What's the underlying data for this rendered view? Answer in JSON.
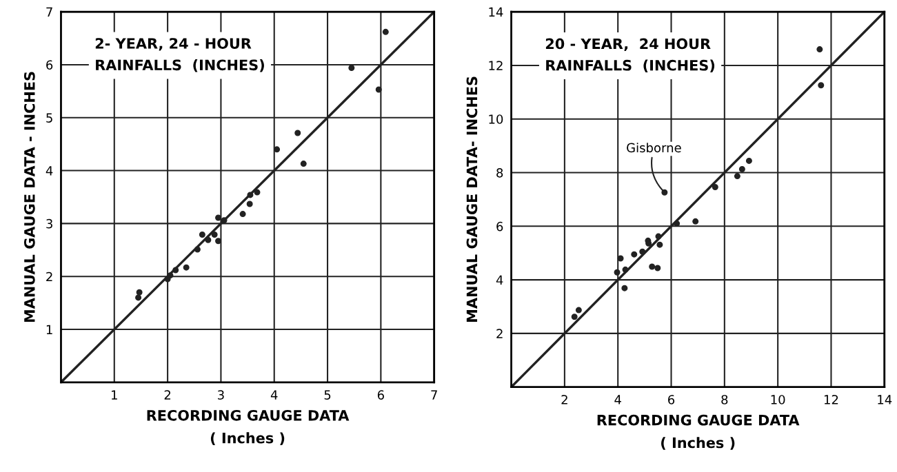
{
  "chart_data": [
    {
      "type": "scatter",
      "title": "2- YEAR, 24 - HOUR\nRAINFALLS  (INCHES)",
      "xlabel": "RECORDING GAUGE DATA\n( Inches )",
      "ylabel": "MANUAL GAUGE DATA - INCHES",
      "xlim": [
        0,
        7
      ],
      "ylim": [
        0,
        7
      ],
      "xticks": [
        1,
        2,
        3,
        4,
        5,
        6,
        7
      ],
      "yticks": [
        1,
        2,
        3,
        4,
        5,
        6,
        7
      ],
      "grid": true,
      "legend": false,
      "series": [
        {
          "marker": "circle",
          "color": "#222222",
          "x": [
            1.47,
            1.45,
            2.0,
            2.05,
            2.15,
            2.35,
            2.56,
            2.65,
            2.76,
            2.88,
            2.95,
            2.95,
            3.06,
            3.41,
            3.54,
            3.55,
            3.68,
            4.05,
            4.44,
            4.55,
            5.45,
            5.96,
            6.09
          ],
          "values": [
            1.7,
            1.6,
            1.95,
            2.02,
            2.12,
            2.17,
            2.51,
            2.79,
            2.69,
            2.79,
            2.67,
            3.11,
            3.06,
            3.18,
            3.37,
            3.54,
            3.59,
            4.4,
            4.71,
            4.13,
            5.94,
            5.53,
            6.62
          ]
        },
        {
          "type": "line",
          "marker": "none",
          "color": "#222222",
          "x": [
            0,
            7
          ],
          "values": [
            0,
            7
          ]
        }
      ]
    },
    {
      "type": "scatter",
      "title": "20 - YEAR,  24 HOUR\nRAINFALLS  (INCHES)",
      "xlabel": "RECORDING GAUGE DATA\n( Inches )",
      "ylabel": "MANUAL GAUGE DATA- INCHES",
      "xlim": [
        0,
        14
      ],
      "ylim": [
        0,
        14
      ],
      "xticks": [
        2,
        4,
        6,
        8,
        10,
        12,
        14
      ],
      "yticks": [
        2,
        4,
        6,
        8,
        10,
        12,
        14
      ],
      "grid": true,
      "legend": false,
      "annotations": [
        {
          "text": "Gisborne",
          "x": 5.75,
          "y": 7.26
        }
      ],
      "series": [
        {
          "marker": "circle",
          "color": "#222222",
          "x": [
            2.37,
            2.53,
            3.97,
            4.1,
            4.28,
            4.25,
            4.61,
            4.92,
            5.13,
            5.15,
            5.28,
            5.49,
            5.52,
            5.57,
            5.75,
            6.21,
            6.91,
            7.65,
            8.48,
            8.66,
            8.92,
            11.57,
            11.62
          ],
          "values": [
            2.62,
            2.87,
            4.28,
            4.8,
            4.38,
            3.69,
            4.95,
            5.05,
            5.46,
            5.36,
            4.49,
            4.44,
            5.62,
            5.31,
            7.26,
            6.1,
            6.18,
            7.46,
            7.87,
            8.13,
            8.44,
            12.6,
            11.26
          ]
        },
        {
          "type": "line",
          "marker": "none",
          "color": "#222222",
          "x": [
            0,
            14
          ],
          "values": [
            0,
            14
          ]
        }
      ]
    }
  ]
}
